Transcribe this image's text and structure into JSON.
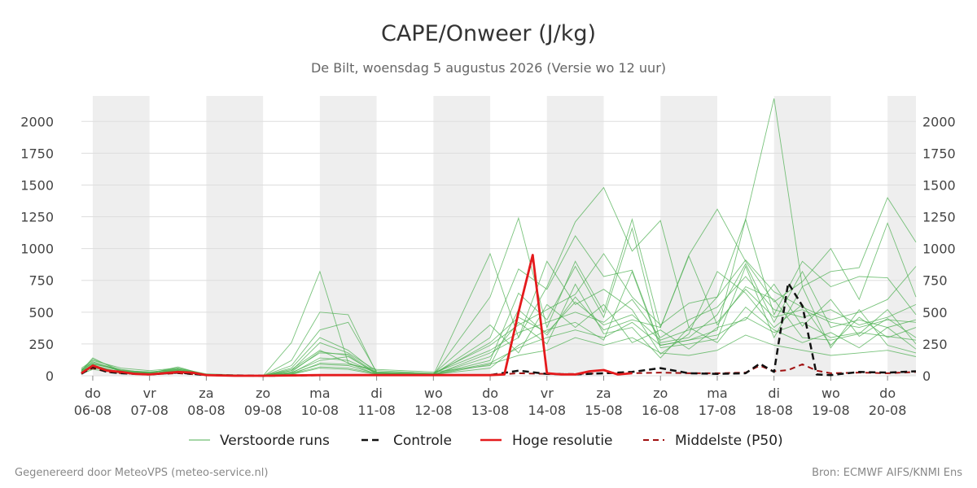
{
  "chart_data": {
    "type": "line",
    "title": "CAPE/Onweer (J/kg)",
    "subtitle": "De Bilt, woensdag  5 augustus 2026 (Versie wo 12 uur)",
    "ylim": [
      0,
      2200
    ],
    "yticks": [
      0,
      250,
      500,
      750,
      1000,
      1250,
      1500,
      1750,
      2000
    ],
    "xlim": [
      -0.2,
      14.5
    ],
    "x_unit": "days from 06-08",
    "xticks": [
      {
        "day": "do",
        "date": "06-08"
      },
      {
        "day": "vr",
        "date": "07-08"
      },
      {
        "day": "za",
        "date": "08-08"
      },
      {
        "day": "zo",
        "date": "09-08"
      },
      {
        "day": "ma",
        "date": "10-08"
      },
      {
        "day": "di",
        "date": "11-08"
      },
      {
        "day": "wo",
        "date": "12-08"
      },
      {
        "day": "do",
        "date": "13-08"
      },
      {
        "day": "vr",
        "date": "14-08"
      },
      {
        "day": "za",
        "date": "15-08"
      },
      {
        "day": "zo",
        "date": "16-08"
      },
      {
        "day": "ma",
        "date": "17-08"
      },
      {
        "day": "di",
        "date": "18-08"
      },
      {
        "day": "wo",
        "date": "19-08"
      },
      {
        "day": "do",
        "date": "20-08"
      }
    ],
    "shaded_day_bands": [
      [
        0,
        1
      ],
      [
        2,
        3
      ],
      [
        4,
        5
      ],
      [
        6,
        7
      ],
      [
        8,
        9
      ],
      [
        10,
        11
      ],
      [
        12,
        13
      ],
      [
        14,
        14.5
      ]
    ],
    "grid": true,
    "legend_position": "bottom",
    "legend": [
      {
        "label": "Verstoorde runs",
        "color": "#4caf50",
        "style": "thin"
      },
      {
        "label": "Controle",
        "color": "#111111",
        "style": "dashed"
      },
      {
        "label": "Hoge resolutie",
        "color": "#e41a1c",
        "style": "solid"
      },
      {
        "label": "Middelste (P50)",
        "color": "#a01010",
        "style": "dashed"
      }
    ],
    "series": [
      {
        "role": "high_res",
        "color": "#e41a1c",
        "x": [
          -0.25,
          0,
          0.25,
          0.5,
          0.75,
          1,
          1.25,
          1.5,
          1.75,
          2,
          2.5,
          3,
          4,
          5,
          6,
          7,
          7.25,
          7.5,
          7.75,
          8,
          8.25,
          8.5,
          8.75,
          9,
          9.25,
          9.5
        ],
        "y": [
          20,
          80,
          40,
          30,
          15,
          10,
          20,
          30,
          25,
          5,
          0,
          0,
          5,
          5,
          5,
          5,
          10,
          500,
          950,
          20,
          10,
          10,
          35,
          45,
          10,
          20
        ]
      },
      {
        "role": "control",
        "color": "#111111",
        "x": [
          -0.25,
          0,
          0.25,
          0.5,
          1,
          1.5,
          2,
          3,
          4,
          5,
          6,
          7,
          7.5,
          8,
          8.5,
          9,
          9.5,
          10,
          10.5,
          11,
          11.5,
          11.75,
          12,
          12.25,
          12.5,
          12.75,
          13,
          13.5,
          14,
          14.5
        ],
        "y": [
          15,
          70,
          30,
          20,
          10,
          25,
          5,
          0,
          5,
          5,
          5,
          5,
          40,
          15,
          10,
          20,
          30,
          60,
          20,
          15,
          20,
          95,
          30,
          730,
          550,
          10,
          5,
          30,
          25,
          35
        ]
      },
      {
        "role": "p50",
        "color": "#a01010",
        "x": [
          -0.25,
          0,
          0.25,
          0.5,
          1,
          1.5,
          2,
          3,
          4,
          5,
          6,
          7,
          7.5,
          8,
          8.5,
          9,
          9.5,
          10,
          10.5,
          11,
          11.5,
          11.75,
          12,
          12.25,
          12.5,
          12.75,
          13,
          13.5,
          14,
          14.5
        ],
        "y": [
          20,
          60,
          30,
          20,
          10,
          20,
          5,
          0,
          5,
          5,
          5,
          5,
          20,
          15,
          15,
          20,
          20,
          25,
          20,
          20,
          25,
          80,
          35,
          45,
          90,
          40,
          20,
          25,
          20,
          30
        ]
      },
      {
        "role": "perturbed",
        "color": "#4caf50",
        "x": [
          -0.25,
          0,
          0.5,
          1,
          1.5,
          2,
          3,
          3.5,
          4,
          4.5,
          5,
          6,
          7,
          7.5,
          8,
          8.5,
          9,
          9.5,
          10,
          10.5,
          11,
          11.5,
          12,
          12.5,
          13,
          13.5,
          14,
          14.5
        ],
        "y": [
          40,
          140,
          30,
          20,
          70,
          5,
          0,
          260,
          820,
          100,
          10,
          5,
          960,
          300,
          700,
          1210,
          1480,
          980,
          1220,
          380,
          620,
          1230,
          2180,
          700,
          820,
          850,
          1400,
          1050
        ]
      },
      {
        "role": "perturbed",
        "color": "#4caf50",
        "x": [
          -0.25,
          0,
          0.5,
          1,
          1.5,
          2,
          3,
          3.5,
          4,
          4.5,
          5,
          6,
          7,
          7.5,
          8,
          8.5,
          9,
          9.5,
          10,
          10.5,
          11,
          11.5,
          12,
          12.5,
          13,
          13.5,
          14,
          14.5
        ],
        "y": [
          50,
          110,
          40,
          30,
          50,
          10,
          0,
          120,
          500,
          480,
          20,
          5,
          620,
          1240,
          380,
          900,
          500,
          1230,
          380,
          950,
          1310,
          900,
          580,
          740,
          1000,
          600,
          1200,
          620
        ]
      },
      {
        "role": "perturbed",
        "color": "#4caf50",
        "x": [
          -0.25,
          0,
          0.5,
          1,
          1.5,
          2,
          3,
          3.5,
          4,
          4.5,
          5,
          6,
          7,
          7.5,
          8,
          8.5,
          9,
          9.5,
          10,
          10.5,
          11,
          11.5,
          12,
          12.5,
          13,
          13.5,
          14,
          14.5
        ],
        "y": [
          30,
          90,
          50,
          20,
          40,
          5,
          0,
          80,
          360,
          420,
          30,
          10,
          300,
          840,
          680,
          1100,
          780,
          830,
          240,
          280,
          360,
          1230,
          480,
          900,
          700,
          780,
          770,
          480
        ]
      },
      {
        "role": "perturbed",
        "color": "#4caf50",
        "x": [
          -0.25,
          0,
          0.5,
          1,
          1.5,
          2,
          3,
          3.5,
          4,
          4.5,
          5,
          6,
          7,
          7.5,
          8,
          8.5,
          9,
          9.5,
          10,
          10.5,
          11,
          11.5,
          12,
          12.5,
          13,
          13.5,
          14,
          14.5
        ],
        "y": [
          60,
          120,
          60,
          40,
          60,
          15,
          0,
          40,
          260,
          180,
          40,
          20,
          240,
          400,
          520,
          640,
          960,
          620,
          400,
          570,
          620,
          910,
          660,
          540,
          440,
          500,
          600,
          860
        ]
      },
      {
        "role": "perturbed",
        "color": "#4caf50",
        "x": [
          -0.25,
          0,
          0.5,
          1,
          1.5,
          2,
          3,
          3.5,
          4,
          4.5,
          5,
          6,
          7,
          7.5,
          8,
          8.5,
          9,
          9.5,
          10,
          10.5,
          11,
          11.5,
          12,
          12.5,
          13,
          13.5,
          14,
          14.5
        ],
        "y": [
          25,
          80,
          20,
          10,
          30,
          5,
          0,
          20,
          140,
          120,
          20,
          10,
          120,
          650,
          440,
          860,
          460,
          1160,
          260,
          300,
          480,
          880,
          420,
          820,
          380,
          440,
          380,
          440
        ]
      },
      {
        "role": "perturbed",
        "color": "#4caf50",
        "x": [
          -0.25,
          0,
          0.5,
          1,
          1.5,
          2,
          3,
          3.5,
          4,
          4.5,
          5,
          6,
          7,
          7.5,
          8,
          8.5,
          9,
          9.5,
          10,
          10.5,
          11,
          11.5,
          12,
          12.5,
          13,
          13.5,
          14,
          14.5
        ],
        "y": [
          35,
          100,
          35,
          20,
          40,
          10,
          0,
          10,
          100,
          90,
          50,
          30,
          80,
          520,
          320,
          620,
          360,
          440,
          380,
          940,
          400,
          700,
          600,
          300,
          280,
          330,
          520,
          250
        ]
      },
      {
        "role": "perturbed",
        "color": "#4caf50",
        "x": [
          -0.25,
          0,
          0.5,
          1,
          1.5,
          2,
          3,
          3.5,
          4,
          4.5,
          5,
          6,
          7,
          7.5,
          8,
          8.5,
          9,
          9.5,
          10,
          10.5,
          11,
          11.5,
          12,
          12.5,
          13,
          13.5,
          14,
          14.5
        ],
        "y": [
          45,
          70,
          25,
          15,
          50,
          5,
          0,
          30,
          190,
          160,
          10,
          5,
          180,
          300,
          900,
          560,
          680,
          520,
          170,
          330,
          820,
          650,
          380,
          560,
          240,
          460,
          300,
          380
        ]
      },
      {
        "role": "perturbed",
        "color": "#4caf50",
        "x": [
          -0.25,
          0,
          0.5,
          1,
          1.5,
          2,
          3,
          3.5,
          4,
          4.5,
          5,
          6,
          7,
          7.5,
          8,
          8.5,
          9,
          9.5,
          10,
          10.5,
          11,
          11.5,
          12,
          12.5,
          13,
          13.5,
          14,
          14.5
        ],
        "y": [
          20,
          60,
          30,
          20,
          30,
          5,
          0,
          15,
          70,
          60,
          15,
          10,
          60,
          240,
          360,
          420,
          280,
          820,
          220,
          250,
          290,
          860,
          300,
          700,
          220,
          520,
          240,
          180
        ]
      },
      {
        "role": "perturbed",
        "color": "#4caf50",
        "x": [
          -0.25,
          0,
          0.5,
          1,
          1.5,
          2,
          3,
          3.5,
          4,
          4.5,
          5,
          6,
          7,
          7.5,
          8,
          8.5,
          9,
          9.5,
          10,
          10.5,
          11,
          11.5,
          12,
          12.5,
          13,
          13.5,
          14,
          14.5
        ],
        "y": [
          40,
          130,
          45,
          25,
          60,
          10,
          0,
          60,
          300,
          200,
          25,
          15,
          400,
          180,
          560,
          380,
          560,
          260,
          360,
          210,
          380,
          440,
          720,
          390,
          600,
          310,
          450,
          300
        ]
      },
      {
        "role": "perturbed",
        "color": "#4caf50",
        "x": [
          -0.25,
          0,
          0.5,
          1,
          1.5,
          2,
          3,
          3.5,
          4,
          4.5,
          5,
          6,
          7,
          7.5,
          8,
          8.5,
          9,
          9.5,
          10,
          10.5,
          11,
          11.5,
          12,
          12.5,
          13,
          13.5,
          14,
          14.5
        ],
        "y": [
          30,
          85,
          25,
          15,
          35,
          5,
          0,
          25,
          120,
          150,
          20,
          10,
          150,
          420,
          250,
          720,
          330,
          380,
          140,
          380,
          260,
          540,
          360,
          260,
          340,
          220,
          380,
          210
        ]
      },
      {
        "role": "perturbed",
        "color": "#4caf50",
        "x": [
          -0.25,
          0,
          0.5,
          1,
          1.5,
          2,
          3,
          3.5,
          4,
          4.5,
          5,
          6,
          7,
          7.5,
          8,
          8.5,
          9,
          9.5,
          10,
          10.5,
          11,
          11.5,
          12,
          12.5,
          13,
          13.5,
          14,
          14.5
        ],
        "y": [
          15,
          50,
          20,
          10,
          25,
          5,
          0,
          10,
          60,
          50,
          10,
          5,
          90,
          160,
          200,
          300,
          240,
          300,
          180,
          160,
          200,
          320,
          240,
          200,
          160,
          180,
          200,
          150
        ]
      },
      {
        "role": "perturbed",
        "color": "#4caf50",
        "x": [
          -0.25,
          0,
          0.5,
          1,
          1.5,
          2,
          3,
          3.5,
          4,
          4.5,
          5,
          6,
          7,
          7.5,
          8,
          8.5,
          9,
          9.5,
          10,
          10.5,
          11,
          11.5,
          12,
          12.5,
          13,
          13.5,
          14,
          14.5
        ],
        "y": [
          50,
          95,
          40,
          30,
          45,
          10,
          0,
          50,
          200,
          100,
          30,
          20,
          200,
          340,
          420,
          500,
          420,
          600,
          300,
          440,
          540,
          780,
          520,
          460,
          520,
          400,
          460,
          560
        ]
      },
      {
        "role": "perturbed",
        "color": "#4caf50",
        "x": [
          -0.25,
          0,
          0.5,
          1,
          1.5,
          2,
          3,
          3.5,
          4,
          4.5,
          5,
          6,
          7,
          7.5,
          8,
          8.5,
          9,
          9.5,
          10,
          10.5,
          11,
          11.5,
          12,
          12.5,
          13,
          13.5,
          14,
          14.5
        ],
        "y": [
          25,
          75,
          30,
          20,
          40,
          5,
          0,
          20,
          90,
          80,
          15,
          10,
          100,
          220,
          300,
          360,
          300,
          420,
          240,
          280,
          320,
          460,
          340,
          420,
          300,
          340,
          310,
          280
        ]
      },
      {
        "role": "perturbed",
        "color": "#4caf50",
        "x": [
          -0.25,
          0,
          0.5,
          1,
          1.5,
          2,
          3,
          3.5,
          4,
          4.5,
          5,
          6,
          7,
          7.5,
          8,
          8.5,
          9,
          9.5,
          10,
          10.5,
          11,
          11.5,
          12,
          12.5,
          13,
          13.5,
          14,
          14.5
        ],
        "y": [
          35,
          110,
          35,
          25,
          55,
          10,
          0,
          40,
          180,
          170,
          20,
          10,
          260,
          460,
          340,
          580,
          400,
          480,
          280,
          360,
          420,
          680,
          460,
          520,
          420,
          380,
          440,
          420
        ]
      }
    ]
  },
  "footer": {
    "left": "Gegenereerd door MeteoVPS (meteo-service.nl)",
    "right": "Bron: ECMWF AIFS/KNMI Ens"
  }
}
